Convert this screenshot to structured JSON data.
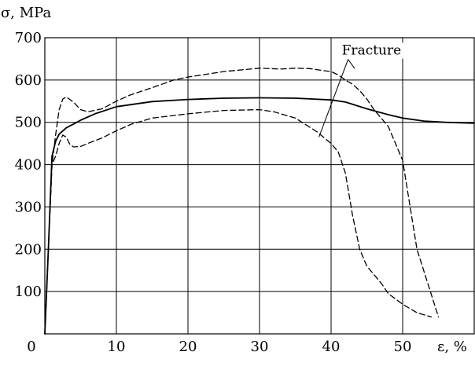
{
  "chart_data": {
    "type": "line",
    "title": "",
    "ylabel": "σ, MPa",
    "xlabel": "ε, %",
    "xlim": [
      0,
      60
    ],
    "ylim": [
      0,
      700
    ],
    "xticks": [
      0,
      10,
      20,
      30,
      40,
      50
    ],
    "yticks": [
      100,
      200,
      300,
      400,
      500,
      600,
      700
    ],
    "grid": true,
    "annotation": {
      "text": "Fracture",
      "label_at": [
        41.5,
        660
      ],
      "points_to": [
        [
          38.3,
          465
        ],
        [
          43.3,
          627
        ]
      ]
    },
    "series": [
      {
        "style": "solid",
        "x": [
          0,
          0.5,
          1,
          1.5,
          2,
          3,
          4,
          5,
          7,
          10,
          15,
          20,
          25,
          30,
          35,
          40,
          42,
          45,
          48,
          50,
          53,
          56,
          60
        ],
        "y": [
          0,
          200,
          420,
          455,
          472,
          487,
          496,
          505,
          520,
          537,
          549,
          554,
          557,
          558,
          557,
          553,
          548,
          532,
          518,
          510,
          503,
          500,
          498
        ]
      },
      {
        "style": "dashed",
        "x": [
          0,
          0.5,
          1,
          1.5,
          2,
          2.5,
          3,
          4,
          5,
          6,
          8,
          10,
          12,
          15,
          18,
          20,
          25,
          30,
          33,
          35,
          37,
          39,
          40,
          41,
          42,
          43,
          44,
          45,
          46,
          47,
          48,
          50,
          52,
          55
        ],
        "y": [
          0,
          200,
          400,
          470,
          530,
          555,
          560,
          548,
          530,
          525,
          532,
          550,
          565,
          582,
          600,
          607,
          620,
          628,
          626,
          628,
          627,
          622,
          620,
          612,
          600,
          590,
          575,
          555,
          530,
          510,
          490,
          410,
          200,
          40
        ]
      },
      {
        "style": "dashed",
        "x": [
          0,
          0.5,
          1,
          1.5,
          2,
          2.5,
          3,
          3.5,
          4,
          5,
          6,
          8,
          10,
          12,
          15,
          20,
          25,
          30,
          32,
          35,
          38,
          40,
          41,
          42,
          43,
          44,
          45,
          46,
          47,
          48,
          50,
          52,
          54
        ],
        "y": [
          0,
          200,
          400,
          420,
          450,
          470,
          465,
          448,
          442,
          443,
          450,
          463,
          480,
          495,
          510,
          520,
          528,
          530,
          525,
          510,
          478,
          450,
          430,
          380,
          280,
          200,
          160,
          140,
          120,
          95,
          70,
          50,
          40
        ]
      }
    ]
  }
}
